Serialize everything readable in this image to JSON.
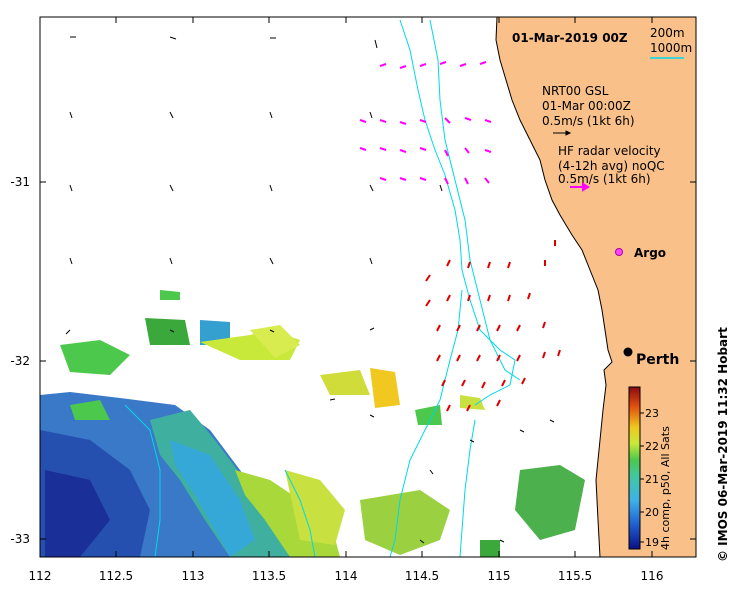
{
  "map": {
    "title": "01-Mar-2019 00Z",
    "x_ticks": [
      "112",
      "112.5",
      "113",
      "113.5",
      "114",
      "114.5",
      "115",
      "115.5",
      "116"
    ],
    "y_ticks": [
      "-31",
      "-32",
      "-33"
    ],
    "lon_range": [
      112,
      116.3
    ],
    "lat_range": [
      -33.1,
      -30.1
    ]
  },
  "legend": {
    "contour_200": "200m",
    "contour_1000": "1000m",
    "model_title": "NRT00 GSL",
    "model_time": "01-Mar 00:00Z",
    "model_scale": "0.5m/s (1kt 6h)",
    "radar_line1": "HF radar velocity",
    "radar_line2": "(4-12h avg) noQC",
    "radar_scale": "0.5m/s (1kt 6h)"
  },
  "labels": {
    "argo": "Argo",
    "perth": "Perth"
  },
  "colorbar": {
    "ticks": [
      "23",
      "22",
      "21",
      "20",
      "19"
    ],
    "label": "4h comp, p50, All Sats"
  },
  "credit": "© IMOS 06-Mar-2019 11:32 Hobart",
  "colors": {
    "land": "#f9c089",
    "radar_arrow": "#ff00ff",
    "sst_arrow": "#dd0000",
    "contour": "#00d8e8"
  }
}
